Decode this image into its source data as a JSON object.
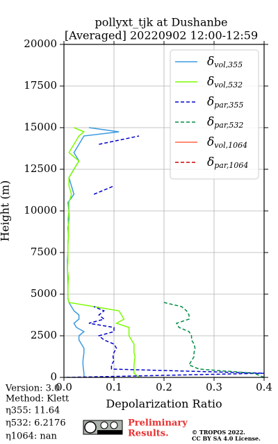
{
  "chart_data": {
    "type": "line",
    "orientation": "vertical-profile",
    "title": [
      "pollyxt_tjk at Dushanbe",
      "[Averaged] 20220902 12:00-12:59"
    ],
    "x_label": "Depolarization Ratio",
    "y_label": "Height (m)",
    "xlim": [
      0,
      0.4
    ],
    "ylim": [
      0,
      20000
    ],
    "xticks": [
      {
        "value": 0,
        "label": "0.0"
      },
      0.1,
      0.2,
      0.3,
      0.4
    ],
    "yticks": [
      0,
      2500,
      5000,
      7500,
      10000,
      12500,
      15000,
      17500,
      20000
    ],
    "grid": true,
    "legend": "upper right",
    "y": [
      0,
      250,
      500,
      750,
      1000,
      1250,
      1500,
      1750,
      2000,
      2250,
      2500,
      2750,
      3000,
      3250,
      3500,
      3750,
      4000,
      4250,
      4500,
      4750,
      5000,
      5500,
      6000,
      6500,
      7000,
      7500,
      8000,
      8500,
      9000,
      9500,
      10000,
      10500,
      11000,
      11500,
      12000,
      12500,
      13000,
      13500,
      14000,
      14500,
      14750,
      15000
    ],
    "series": [
      {
        "name": "δvol,355",
        "color": "#3a9ae0",
        "dash": false,
        "values": [
          0.04,
          0.04,
          0.039,
          0.038,
          0.038,
          0.039,
          0.04,
          0.04,
          0.035,
          0.03,
          0.03,
          0.04,
          0.025,
          0.02,
          0.03,
          0.03,
          0.02,
          0.015,
          0.01,
          0.008,
          0.008,
          0.008,
          0.008,
          0.007,
          0.007,
          0.008,
          0.008,
          0.009,
          0.008,
          0.01,
          0.01,
          0.008,
          0.02,
          0.015,
          0.01,
          0.02,
          0.03,
          0.02,
          0.03,
          0.04,
          0.11,
          0.05
        ]
      },
      {
        "name": "δvol,532",
        "color": "#7cfc00",
        "dash": false,
        "values": [
          0.15,
          0.14,
          0.14,
          0.14,
          0.141,
          0.142,
          0.14,
          0.14,
          0.14,
          0.135,
          0.13,
          0.13,
          0.13,
          0.105,
          0.12,
          0.115,
          0.11,
          0.06,
          0.01,
          0.008,
          0.008,
          0.008,
          0.009,
          0.007,
          0.008,
          0.008,
          0.008,
          0.009,
          0.009,
          0.008,
          0.01,
          0.01,
          0.015,
          0.01,
          0.01,
          0.02,
          0.03,
          0.01,
          0.02,
          0.03,
          0.04,
          0.02
        ]
      },
      {
        "name": "δpar,355",
        "color": "#0000cd",
        "dash": true,
        "values": [
          0.005,
          0.4,
          0.095,
          0.095,
          0.1,
          0.098,
          0.1,
          0.105,
          0.1,
          0.08,
          0.07,
          0.1,
          0.1,
          0.05,
          0.08,
          0.07,
          0.08,
          0.06,
          null,
          null,
          null,
          null,
          null,
          null,
          null,
          null,
          null,
          null,
          null,
          null,
          null,
          null,
          0.06,
          0.1,
          null,
          null,
          null,
          null,
          0.07,
          0.15,
          null,
          null
        ]
      },
      {
        "name": "δpar,532",
        "color": "#008b45",
        "dash": true,
        "values": [
          0.4,
          0.38,
          0.27,
          0.25,
          0.255,
          0.26,
          0.26,
          0.262,
          0.26,
          0.255,
          0.255,
          0.25,
          0.23,
          0.225,
          0.25,
          0.25,
          0.245,
          0.235,
          0.2,
          null,
          null,
          null,
          null,
          null,
          null,
          null,
          null,
          null,
          null,
          null,
          null,
          null,
          null,
          null,
          null,
          null,
          null,
          null,
          null,
          null,
          null,
          null
        ]
      },
      {
        "name": "δvol,1064",
        "color": "#ff6347",
        "dash": false,
        "values": [
          null,
          null,
          null,
          null,
          null,
          null,
          null,
          null,
          null,
          null,
          null,
          null,
          null,
          null,
          null,
          null,
          null,
          null,
          null,
          null,
          null,
          null,
          null,
          null,
          null,
          null,
          null,
          null,
          null,
          null,
          null,
          null,
          null,
          null,
          null,
          null,
          null,
          null,
          null,
          null,
          null,
          null
        ]
      },
      {
        "name": "δpar,1064",
        "color": "#cc0000",
        "dash": true,
        "values": [
          null,
          null,
          null,
          null,
          null,
          null,
          null,
          null,
          null,
          null,
          null,
          null,
          null,
          null,
          null,
          null,
          null,
          null,
          null,
          null,
          null,
          null,
          null,
          null,
          null,
          null,
          null,
          null,
          null,
          null,
          null,
          null,
          null,
          null,
          null,
          null,
          null,
          null,
          null,
          null,
          null,
          null
        ]
      }
    ],
    "annotations": {
      "version": "Version: 3.0",
      "method": "Method: Klett",
      "eta355": "η355:  11.64",
      "eta532": "η532: 6.2176",
      "eta1064": "η1064:    nan",
      "preliminary": [
        "Preliminary",
        "Results."
      ],
      "copyright": [
        "© TROPOS 2022.",
        "CC BY SA 4.0 License."
      ]
    }
  }
}
